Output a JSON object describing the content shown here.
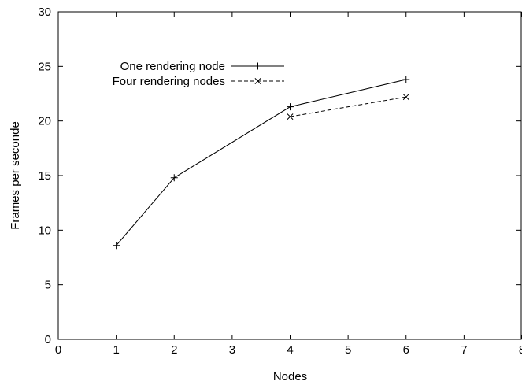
{
  "chart_data": {
    "type": "line",
    "title": "",
    "xlabel": "Nodes",
    "ylabel": "Frames per seconde",
    "xlim": [
      0,
      8
    ],
    "ylim": [
      0,
      30
    ],
    "x_ticks": [
      0,
      1,
      2,
      3,
      4,
      5,
      6,
      7,
      8
    ],
    "y_ticks": [
      0,
      5,
      10,
      15,
      20,
      25,
      30
    ],
    "grid": false,
    "legend_position": "top-left",
    "series": [
      {
        "name": "One rendering  node",
        "line_style": "solid",
        "marker": "plus",
        "color": "#000000",
        "x": [
          1,
          2,
          4,
          6
        ],
        "y": [
          8.6,
          14.8,
          21.3,
          23.8
        ]
      },
      {
        "name": "Four rendering  nodes",
        "line_style": "dashed",
        "marker": "cross",
        "color": "#000000",
        "x": [
          4,
          6
        ],
        "y": [
          20.4,
          22.2
        ]
      }
    ]
  }
}
